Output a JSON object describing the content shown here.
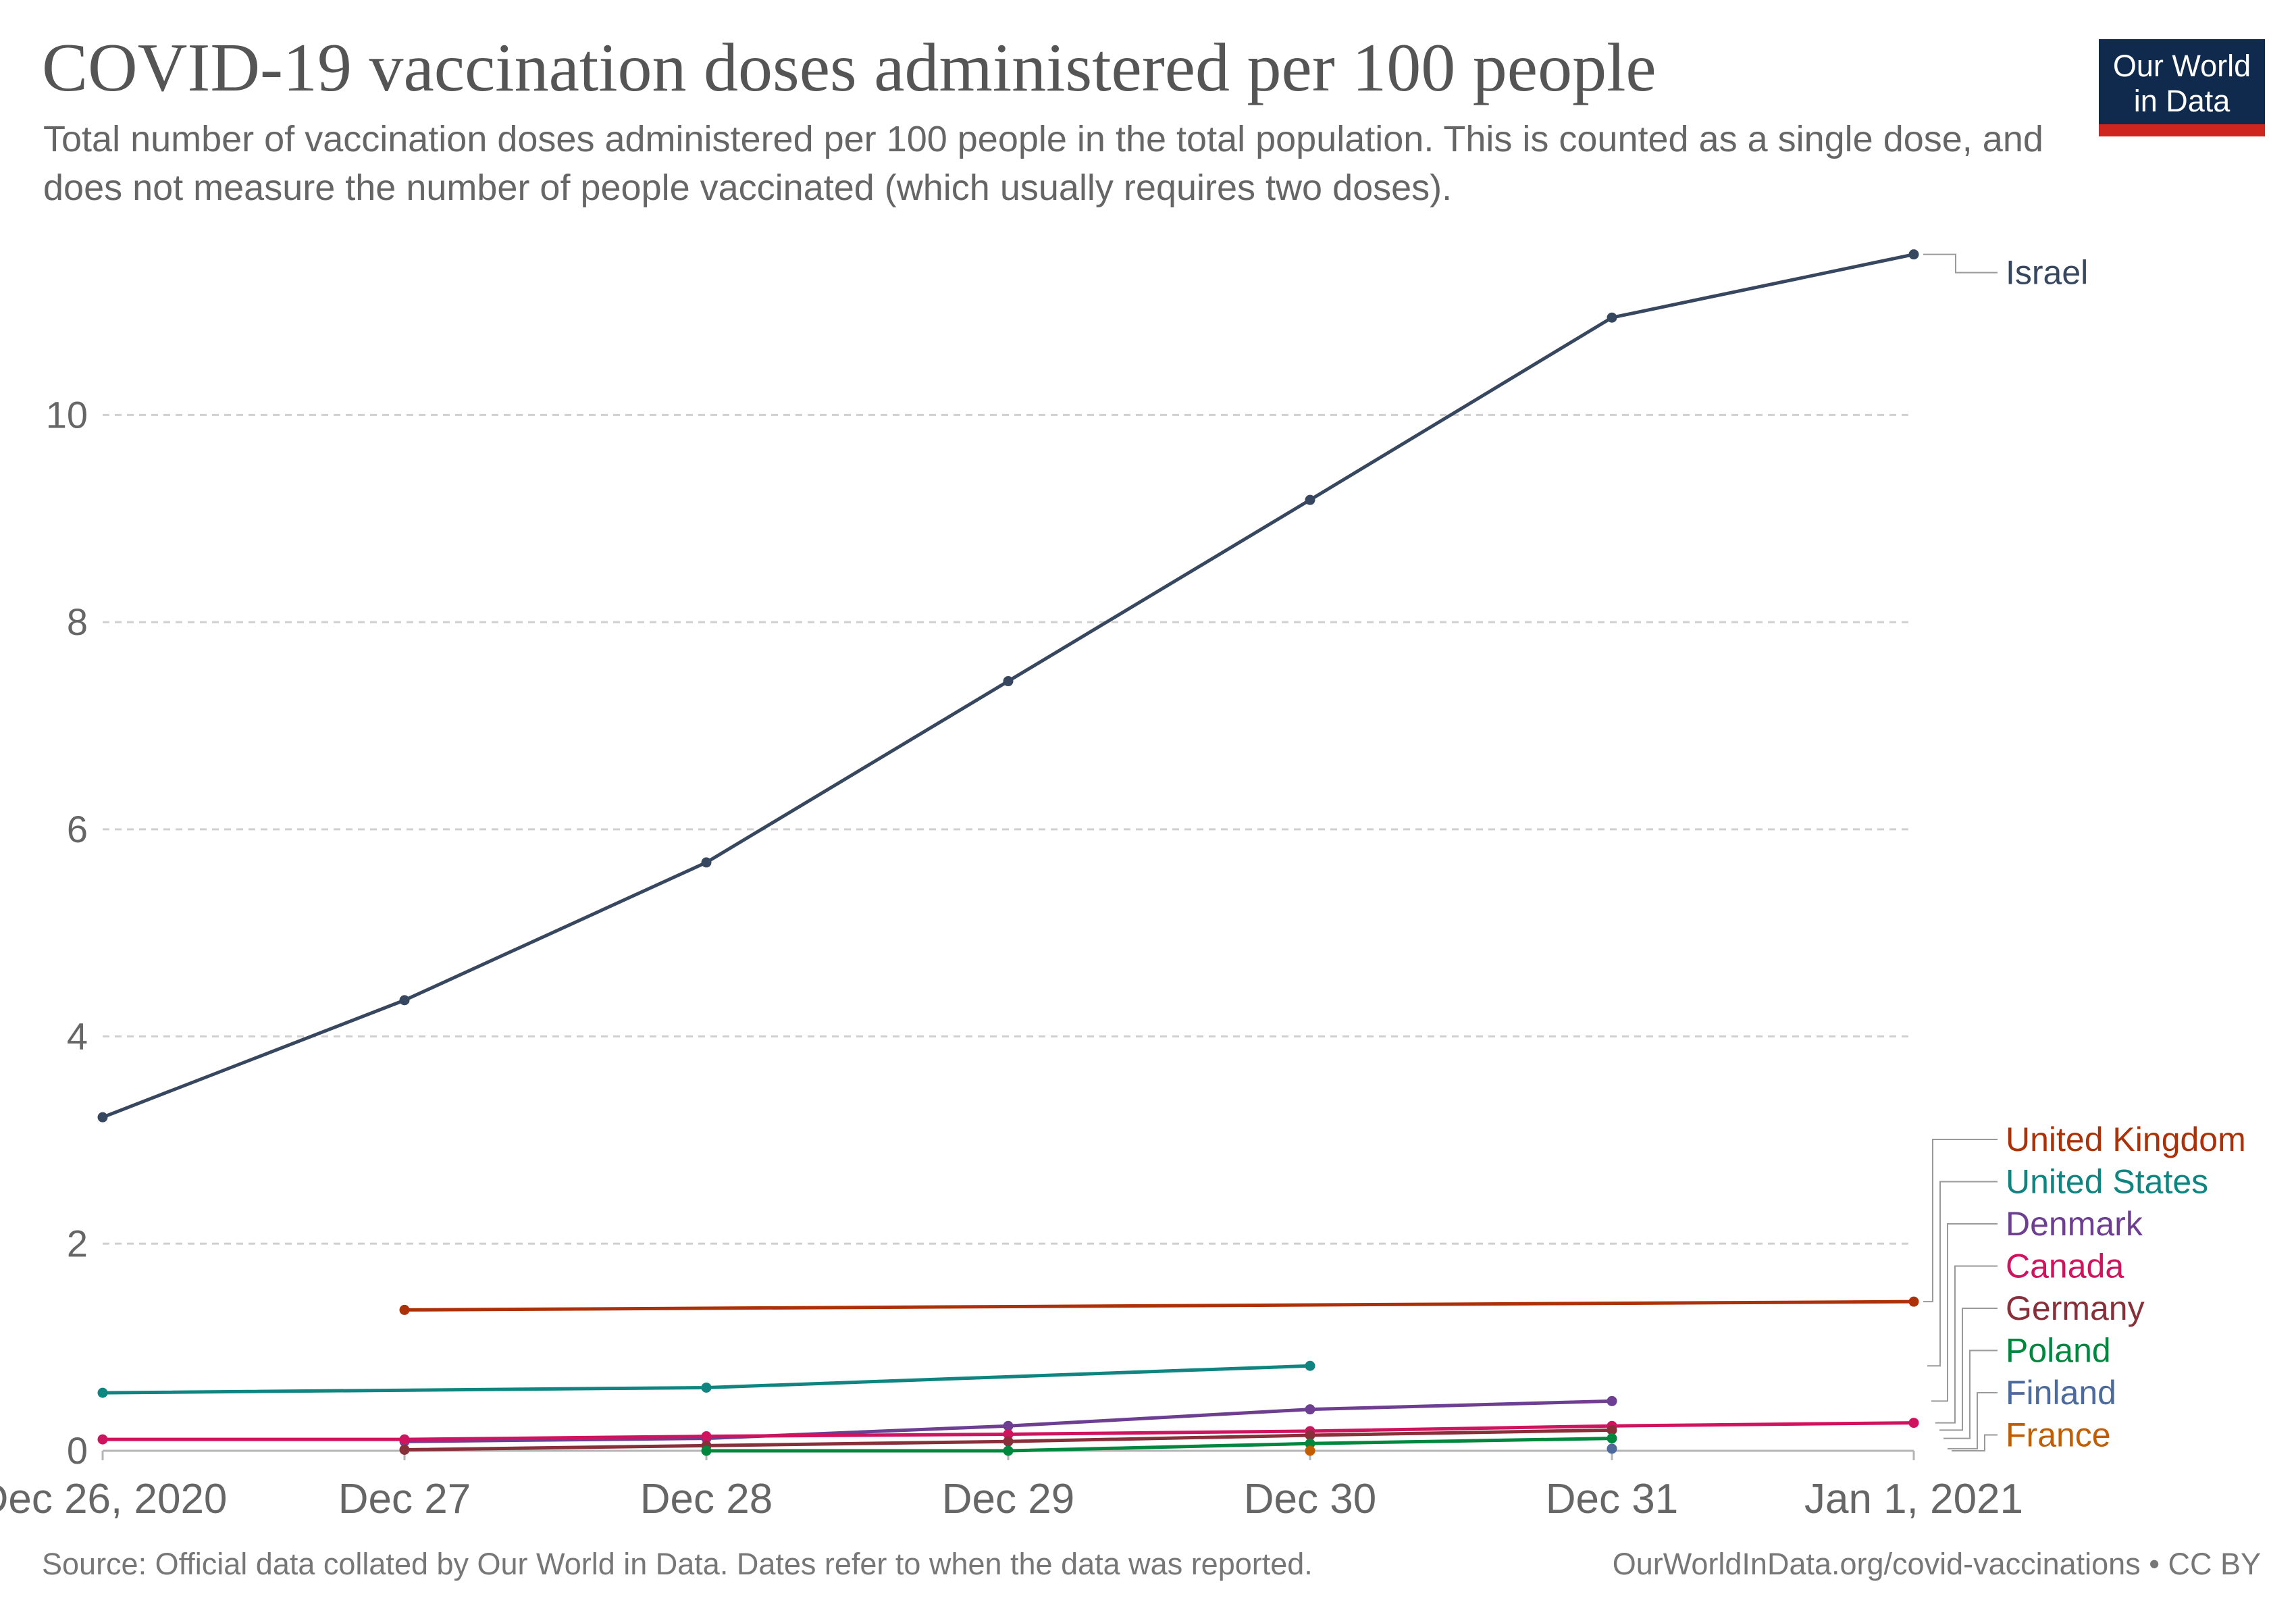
{
  "header": {
    "title": "COVID-19 vaccination doses administered per 100 people",
    "subtitle": "Total number of vaccination doses administered per 100 people in the total population. This is counted as a single dose, and does not measure the number of people vaccinated (which usually requires two doses).",
    "logo_line1": "Our World",
    "logo_line2": "in Data"
  },
  "footer": {
    "source": "Source: Official data collated by Our World in Data. Dates refer to when the data was reported.",
    "link": "OurWorldInData.org/covid-vaccinations • CC BY"
  },
  "colors": {
    "brand_navy": "#0f2a4d",
    "brand_red": "#ce261e",
    "grid": "#d0d0d0",
    "axis_text": "#666666"
  },
  "chart_data": {
    "type": "line",
    "title": "COVID-19 vaccination doses administered per 100 people",
    "x": [
      "2020-12-26",
      "2020-12-27",
      "2020-12-28",
      "2020-12-29",
      "2020-12-30",
      "2020-12-31",
      "2021-01-01"
    ],
    "x_tick_labels": [
      "Dec 26, 2020",
      "Dec 27",
      "Dec 28",
      "Dec 29",
      "Dec 30",
      "Dec 31",
      "Jan 1, 2021"
    ],
    "y_ticks": [
      0,
      2,
      4,
      6,
      8,
      10
    ],
    "ylim": [
      0,
      11.6
    ],
    "grid": "horizontal dashed",
    "legend": "labels at right end of lines",
    "series": [
      {
        "name": "Israel",
        "color": "#37475f",
        "points": [
          [
            "2020-12-26",
            3.22
          ],
          [
            "2020-12-27",
            4.35
          ],
          [
            "2020-12-28",
            5.68
          ],
          [
            "2020-12-29",
            7.43
          ],
          [
            "2020-12-30",
            9.18
          ],
          [
            "2020-12-31",
            10.94
          ],
          [
            "2021-01-01",
            11.55
          ]
        ]
      },
      {
        "name": "United Kingdom",
        "color": "#ad3108",
        "points": [
          [
            "2020-12-27",
            1.36
          ],
          [
            "2021-01-01",
            1.44
          ]
        ]
      },
      {
        "name": "United States",
        "color": "#0e8580",
        "points": [
          [
            "2020-12-26",
            0.56
          ],
          [
            "2020-12-28",
            0.61
          ],
          [
            "2020-12-30",
            0.82
          ]
        ]
      },
      {
        "name": "Denmark",
        "color": "#6d3e91",
        "points": [
          [
            "2020-12-27",
            0.09
          ],
          [
            "2020-12-28",
            0.12
          ],
          [
            "2020-12-29",
            0.24
          ],
          [
            "2020-12-30",
            0.4
          ],
          [
            "2020-12-31",
            0.48
          ]
        ]
      },
      {
        "name": "Canada",
        "color": "#d0135f",
        "points": [
          [
            "2020-12-26",
            0.11
          ],
          [
            "2020-12-27",
            0.11
          ],
          [
            "2020-12-28",
            0.14
          ],
          [
            "2020-12-29",
            0.16
          ],
          [
            "2020-12-30",
            0.19
          ],
          [
            "2020-12-31",
            0.24
          ],
          [
            "2021-01-01",
            0.27
          ]
        ]
      },
      {
        "name": "Germany",
        "color": "#883039",
        "points": [
          [
            "2020-12-27",
            0.01
          ],
          [
            "2020-12-28",
            0.05
          ],
          [
            "2020-12-29",
            0.09
          ],
          [
            "2020-12-30",
            0.15
          ],
          [
            "2020-12-31",
            0.2
          ]
        ]
      },
      {
        "name": "Poland",
        "color": "#00873e",
        "points": [
          [
            "2020-12-28",
            0.0
          ],
          [
            "2020-12-29",
            0.0
          ],
          [
            "2020-12-30",
            0.07
          ],
          [
            "2020-12-31",
            0.12
          ]
        ]
      },
      {
        "name": "Finland",
        "color": "#4c6a9c",
        "points": [
          [
            "2020-12-31",
            0.02
          ]
        ]
      },
      {
        "name": "France",
        "color": "#c15d03",
        "points": [
          [
            "2020-12-30",
            0.0
          ]
        ]
      }
    ]
  }
}
